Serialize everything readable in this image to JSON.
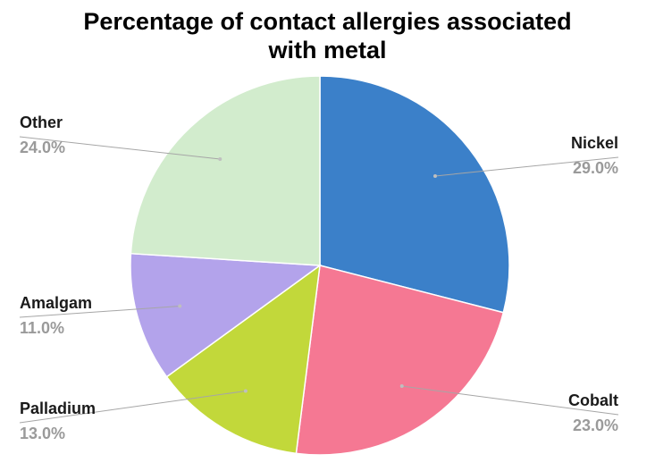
{
  "chart_data": {
    "type": "pie",
    "title_line1": "Percentage of contact allergies associated",
    "title_line2": "with metal",
    "slices": [
      {
        "label": "Nickel",
        "value": 29.0,
        "value_text": "29.0%",
        "color": "#3b80c9"
      },
      {
        "label": "Cobalt",
        "value": 23.0,
        "value_text": "23.0%",
        "color": "#f57893"
      },
      {
        "label": "Palladium",
        "value": 13.0,
        "value_text": "13.0%",
        "color": "#c2d83a"
      },
      {
        "label": "Amalgam",
        "value": 11.0,
        "value_text": "11.0%",
        "color": "#b3a3eb"
      },
      {
        "label": "Other",
        "value": 24.0,
        "value_text": "24.0%",
        "color": "#d2eccd"
      }
    ],
    "legend": "none",
    "start_angle": "12 o'clock",
    "direction": "clockwise"
  }
}
